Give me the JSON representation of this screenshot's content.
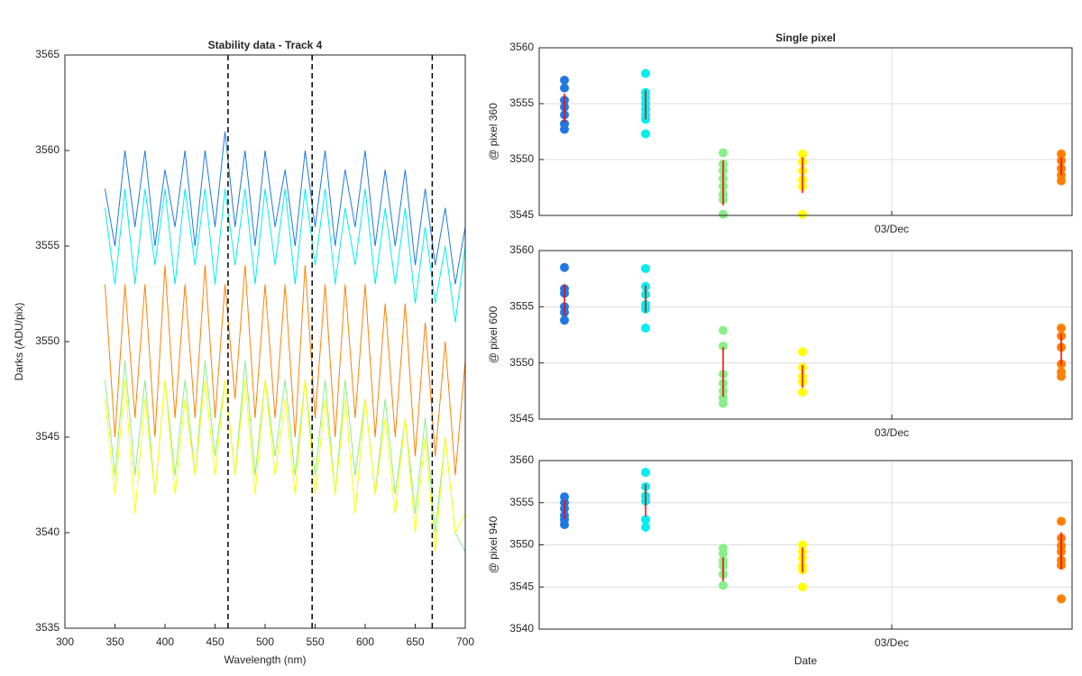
{
  "chart_data": [
    {
      "type": "line",
      "title": "Stability data - Track 4",
      "xlabel": "Wavelength (nm)",
      "ylabel": "Darks (ADU/pix)",
      "x": [
        340,
        350,
        360,
        370,
        380,
        390,
        400,
        410,
        420,
        430,
        440,
        450,
        460,
        470,
        480,
        490,
        500,
        510,
        520,
        530,
        540,
        550,
        560,
        570,
        580,
        590,
        600,
        610,
        620,
        630,
        640,
        650,
        660,
        670,
        680,
        690,
        700
      ],
      "series": [
        {
          "color": "#1e78e6",
          "values": [
            3558,
            3555,
            3560,
            3556,
            3560,
            3555,
            3559,
            3556,
            3560,
            3555,
            3560,
            3556,
            3561,
            3556,
            3560,
            3555,
            3560,
            3556,
            3559,
            3555,
            3560,
            3556,
            3560,
            3555,
            3559,
            3556,
            3560,
            3555,
            3559,
            3555,
            3559,
            3554,
            3558,
            3554,
            3557,
            3553,
            3556
          ]
        },
        {
          "color": "#00eeee",
          "values": [
            3557,
            3553,
            3558,
            3553,
            3558,
            3554,
            3558,
            3553,
            3558,
            3554,
            3558,
            3553,
            3558,
            3554,
            3558,
            3553,
            3558,
            3554,
            3558,
            3553,
            3558,
            3554,
            3558,
            3553,
            3557,
            3554,
            3558,
            3553,
            3557,
            3553,
            3557,
            3552,
            3556,
            3552,
            3555,
            3551,
            3555
          ]
        },
        {
          "color": "#88ee88",
          "values": [
            3548,
            3543,
            3549,
            3543,
            3548,
            3542,
            3548,
            3543,
            3548,
            3543,
            3549,
            3544,
            3548,
            3543,
            3549,
            3543,
            3548,
            3544,
            3548,
            3543,
            3548,
            3543,
            3548,
            3542,
            3548,
            3543,
            3547,
            3542,
            3547,
            3542,
            3546,
            3541,
            3546,
            3540,
            3545,
            3540,
            3539
          ]
        },
        {
          "color": "#ffff00",
          "values": [
            3547,
            3542,
            3548,
            3541,
            3547,
            3542,
            3548,
            3542,
            3547,
            3543,
            3548,
            3543,
            3548,
            3543,
            3548,
            3542,
            3548,
            3543,
            3547,
            3542,
            3548,
            3542,
            3547,
            3542,
            3547,
            3541,
            3547,
            3542,
            3546,
            3541,
            3546,
            3540,
            3545,
            3539,
            3545,
            3540,
            3541
          ]
        },
        {
          "color": "#ff8000",
          "values": [
            3553,
            3545,
            3553,
            3546,
            3553,
            3545,
            3554,
            3546,
            3553,
            3546,
            3554,
            3546,
            3553,
            3547,
            3554,
            3546,
            3553,
            3546,
            3553,
            3545,
            3554,
            3546,
            3553,
            3545,
            3553,
            3546,
            3553,
            3545,
            3552,
            3545,
            3552,
            3544,
            3551,
            3544,
            3550,
            3543,
            3549
          ]
        }
      ],
      "vlines": [
        463,
        547,
        667
      ],
      "xlim": [
        300,
        700
      ],
      "xticks": [
        300,
        350,
        400,
        450,
        500,
        550,
        600,
        650,
        700
      ],
      "ylim": [
        3535,
        3565
      ],
      "yticks": [
        3535,
        3540,
        3545,
        3550,
        3555,
        3560,
        3565
      ],
      "grid": false
    },
    {
      "type": "dot-errorbar",
      "title": "Single pixel",
      "ylabel": "@ pixel 360",
      "err_color": "#ff0000",
      "xlim": [
        1.045,
        4.0
      ],
      "xticks": [
        {
          "value": 3,
          "label": "03/Dec"
        }
      ],
      "ylim": [
        3545,
        3560
      ],
      "yticks": [
        3545,
        3550,
        3555,
        3560
      ],
      "grid": true,
      "groups": [
        {
          "x": 1.185,
          "color": "#1e78e6",
          "values": [
            3557.1,
            3556.4,
            3555.3,
            3554.7,
            3554,
            3553.2,
            3552.7
          ],
          "mean": 3554.6,
          "std": 1.3
        },
        {
          "x": 1.635,
          "color": "#00eeee",
          "values": [
            3557.7,
            3556,
            3555.5,
            3555,
            3554.5,
            3554,
            3553.6,
            3552.3
          ],
          "mean": 3554.9,
          "std": 1.3
        },
        {
          "x": 2.065,
          "color": "#88ee88",
          "values": [
            3550.6,
            3549.6,
            3549,
            3548.3,
            3547.6,
            3546.9,
            3546.4,
            3545.1
          ],
          "mean": 3547.9,
          "std": 2
        },
        {
          "x": 2.505,
          "color": "#ffff00",
          "values": [
            3550.5,
            3549.8,
            3549,
            3548.2,
            3547.6,
            3545.1
          ],
          "mean": 3548.6,
          "std": 1.6
        },
        {
          "x": 3.94,
          "color": "#ff8000",
          "values": [
            3550.5,
            3549.9,
            3549.2,
            3548.6,
            3548.1
          ],
          "mean": 3549.4,
          "std": 0.8
        }
      ]
    },
    {
      "type": "dot-errorbar",
      "ylabel": "@ pixel 600",
      "err_color": "#ff0000",
      "xlim": [
        1.045,
        4.0
      ],
      "xticks": [
        {
          "value": 3,
          "label": "03/Dec"
        }
      ],
      "ylim": [
        3545,
        3560
      ],
      "yticks": [
        3545,
        3550,
        3555,
        3560
      ],
      "grid": true,
      "groups": [
        {
          "x": 1.185,
          "color": "#1e78e6",
          "values": [
            3558.5,
            3556.6,
            3556.2,
            3555,
            3554.5,
            3553.8
          ],
          "mean": 3555.6,
          "std": 1.4
        },
        {
          "x": 1.635,
          "color": "#00eeee",
          "values": [
            3558.4,
            3556.8,
            3556.1,
            3555.2,
            3554.8,
            3553.1
          ],
          "mean": 3555.7,
          "std": 1.2
        },
        {
          "x": 2.065,
          "color": "#88ee88",
          "values": [
            3552.9,
            3551.5,
            3549,
            3548.2,
            3547.5,
            3546.9,
            3546.4
          ],
          "mean": 3549.2,
          "std": 2.2
        },
        {
          "x": 2.505,
          "color": "#ffff00",
          "values": [
            3551,
            3549.6,
            3548.8,
            3548.3,
            3547.4
          ],
          "mean": 3548.8,
          "std": 1
        },
        {
          "x": 3.94,
          "color": "#ff8000",
          "values": [
            3553.1,
            3552.4,
            3551.4,
            3549.9,
            3549.2,
            3548.8
          ],
          "mean": 3551.2,
          "std": 1.4
        }
      ]
    },
    {
      "type": "dot-errorbar",
      "ylabel": "@ pixel 940",
      "xlabel": "Date",
      "err_color": "#ff0000",
      "xlim": [
        1.045,
        4.0
      ],
      "xticks": [
        {
          "value": 3,
          "label": "03/Dec"
        }
      ],
      "ylim": [
        3540,
        3560
      ],
      "yticks": [
        3540,
        3545,
        3550,
        3555,
        3560
      ],
      "grid": true,
      "groups": [
        {
          "x": 1.185,
          "color": "#1e78e6",
          "values": [
            3555.7,
            3555,
            3554.3,
            3553.5,
            3553,
            3552.4
          ],
          "mean": 3554.2,
          "std": 1.1
        },
        {
          "x": 1.635,
          "color": "#00eeee",
          "values": [
            3558.6,
            3556.9,
            3555.8,
            3555.2,
            3553,
            3552.1
          ],
          "mean": 3555.3,
          "std": 1.9
        },
        {
          "x": 2.065,
          "color": "#88ee88",
          "values": [
            3549.6,
            3549,
            3548.1,
            3547.5,
            3546.5,
            3545.2
          ],
          "mean": 3547.1,
          "std": 1.4
        },
        {
          "x": 2.505,
          "color": "#ffff00",
          "values": [
            3550,
            3549.2,
            3548.4,
            3547.5,
            3547,
            3545
          ],
          "mean": 3548.2,
          "std": 1.5
        },
        {
          "x": 3.94,
          "color": "#ff8000",
          "values": [
            3552.8,
            3550.8,
            3549.9,
            3549.2,
            3548.2,
            3547.6,
            3543.6
          ],
          "mean": 3549.3,
          "std": 2.2
        }
      ]
    }
  ]
}
